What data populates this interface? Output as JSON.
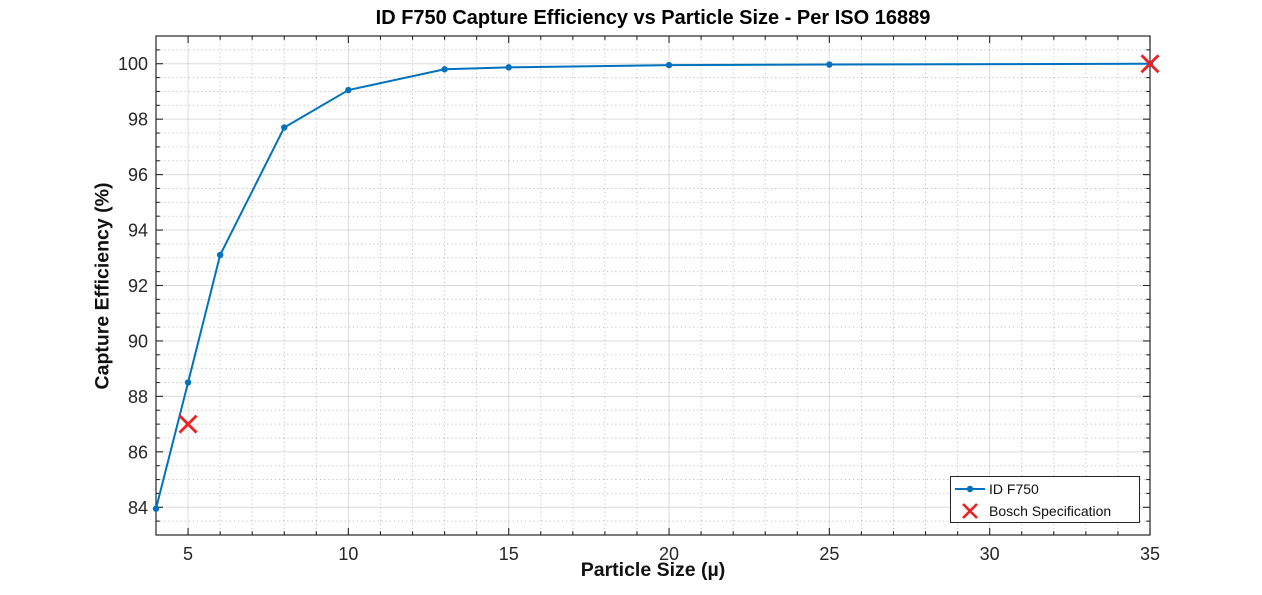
{
  "chart_data": {
    "type": "line",
    "title": "ID F750 Capture Efficiency vs Particle Size - Per ISO 16889",
    "xlabel": "Particle Size (µ)",
    "ylabel": "Capture Efficiency (%)",
    "xlim": [
      4,
      35
    ],
    "ylim": [
      83,
      101
    ],
    "x_ticks": [
      5,
      10,
      15,
      20,
      25,
      30,
      35
    ],
    "y_ticks": [
      84,
      86,
      88,
      90,
      92,
      94,
      96,
      98,
      100
    ],
    "x_minor_step": 1,
    "y_minor_step": 0.5,
    "grid": "on",
    "minor_grid": "on",
    "legend_position": "southeast",
    "series": [
      {
        "name": "ID F750",
        "type": "line-with-markers",
        "color": "#0072BD",
        "marker": "dot",
        "x": [
          4,
          5,
          6,
          8,
          10,
          13,
          15,
          20,
          25,
          35
        ],
        "y": [
          83.95,
          88.5,
          93.1,
          97.7,
          99.05,
          99.8,
          99.87,
          99.95,
          99.97,
          100
        ]
      },
      {
        "name": "Bosch Specification",
        "type": "scatter",
        "color": "#EE2222",
        "marker": "x",
        "x": [
          5,
          35
        ],
        "y": [
          87,
          100
        ]
      }
    ]
  }
}
